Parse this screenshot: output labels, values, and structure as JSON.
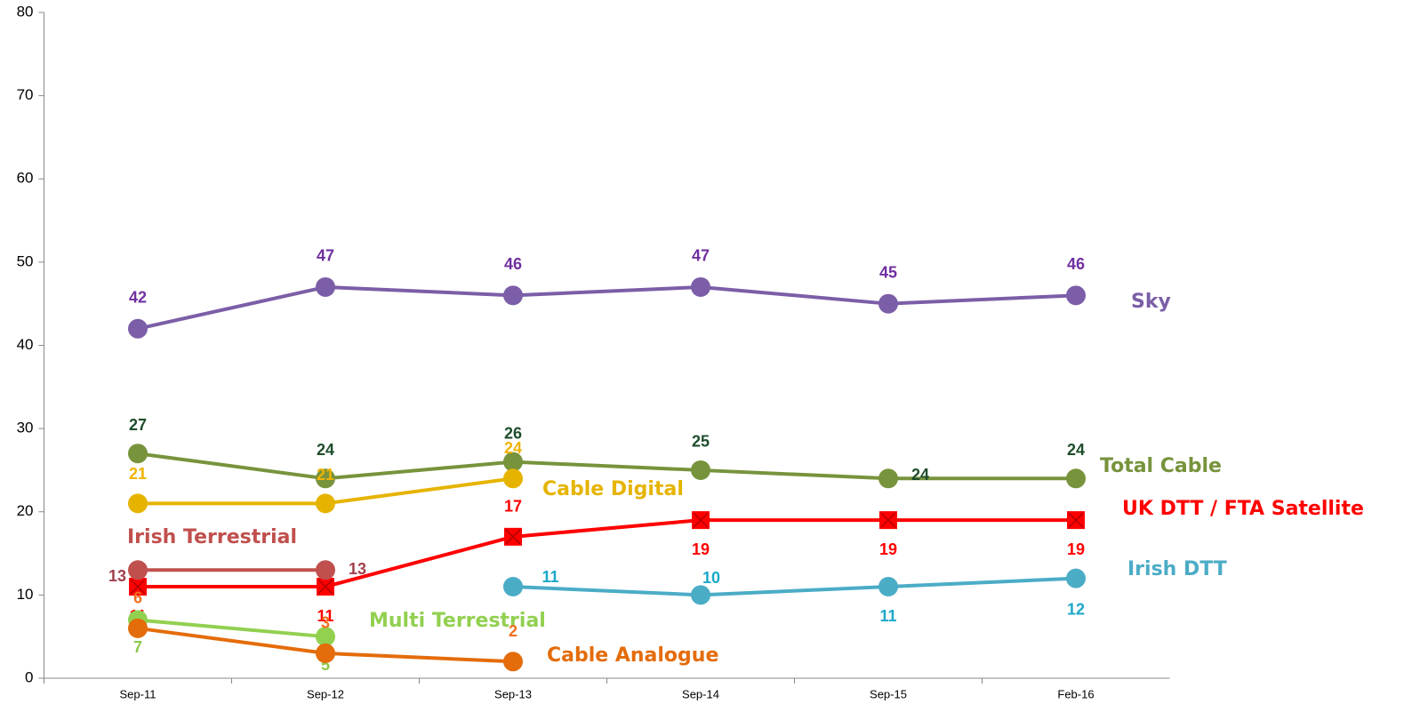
{
  "chart_data": {
    "type": "line",
    "categories": [
      "Sep-11",
      "Sep-12",
      "Sep-13",
      "Sep-14",
      "Sep-15",
      "Feb-16"
    ],
    "ylim": [
      0,
      80
    ],
    "yticks": [
      0,
      10,
      20,
      30,
      40,
      50,
      60,
      70,
      80
    ],
    "grid": false,
    "series": [
      {
        "name": "Sky",
        "color": "#7b5ea7",
        "label_color": "#7030a0",
        "marker": "circle",
        "values": [
          42,
          47,
          46,
          47,
          45,
          46
        ]
      },
      {
        "name": "Total Cable",
        "color": "#77933c",
        "label_color": "#1e4d2b",
        "marker": "circle",
        "values": [
          27,
          24,
          26,
          25,
          24,
          24
        ]
      },
      {
        "name": "Cable Digital",
        "color": "#e6b400",
        "label_color": "#f0b400",
        "marker": "circle",
        "values": [
          21,
          21,
          24,
          null,
          null,
          null
        ]
      },
      {
        "name": "UK DTT / FTA Satellite",
        "color": "#ff0000",
        "label_color": "#ff0000",
        "marker": "square",
        "values": [
          11,
          11,
          17,
          19,
          19,
          19
        ]
      },
      {
        "name": "Irish Terrestrial",
        "color": "#c0504d",
        "label_color": "#a0404d",
        "marker": "circle",
        "values": [
          13,
          13,
          null,
          null,
          null,
          null
        ]
      },
      {
        "name": "Irish DTT",
        "color": "#4bacc6",
        "label_color": "#1ba8c8",
        "marker": "circle",
        "values": [
          null,
          null,
          11,
          10,
          11,
          12
        ]
      },
      {
        "name": "Multi Terrestrial",
        "color": "#92d050",
        "label_color": "#8cc84b",
        "marker": "circle",
        "values": [
          7,
          5,
          null,
          null,
          null,
          null
        ]
      },
      {
        "name": "Cable Analogue",
        "color": "#e46c0a",
        "label_color": "#f07020",
        "marker": "circle",
        "values": [
          6,
          3,
          2,
          null,
          null,
          null
        ]
      }
    ]
  }
}
